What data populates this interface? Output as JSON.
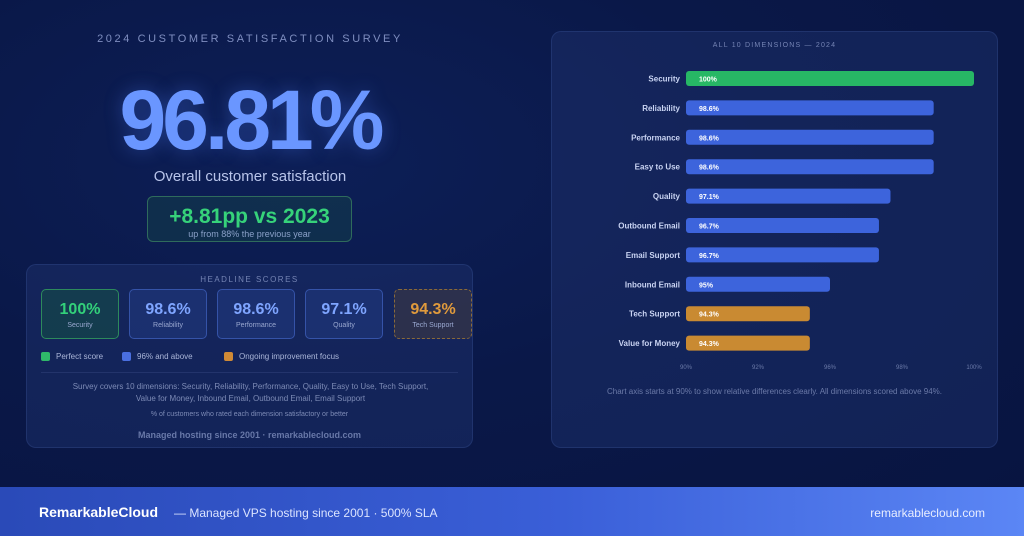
{
  "survey_title": "2024 CUSTOMER SATISFACTION SURVEY",
  "overall": {
    "value": "96.81%",
    "caption": "Overall customer satisfaction",
    "delta": "+8.81pp vs 2023",
    "delta_sub": "up from 88% the previous year"
  },
  "headline": {
    "heading": "HEADLINE SCORES",
    "cards": [
      {
        "value": "100%",
        "label": "Security",
        "style": "green"
      },
      {
        "value": "98.6%",
        "label": "Reliability",
        "style": "blue"
      },
      {
        "value": "98.6%",
        "label": "Performance",
        "style": "blue"
      },
      {
        "value": "97.1%",
        "label": "Quality",
        "style": "blue"
      },
      {
        "value": "94.3%",
        "label": "Tech Support",
        "style": "orange"
      }
    ],
    "legend": [
      {
        "label": "Perfect score",
        "color": "#2fb86a"
      },
      {
        "label": "96% and above",
        "color": "#4a6fe0"
      },
      {
        "label": "Ongoing improvement focus",
        "color": "#d08a36"
      }
    ],
    "note": "Survey covers 10 dimensions: Security, Reliability, Performance, Quality, Easy to Use, Tech Support, Value for Money, Inbound Email, Outbound Email, Email Support",
    "note2": "% of customers who rated each dimension satisfactory or better",
    "brand": "Managed hosting since 2001 · remarkablecloud.com"
  },
  "chart_data": {
    "type": "bar",
    "orientation": "horizontal",
    "title": "ALL 10 DIMENSIONS — 2024",
    "categories": [
      "Security",
      "Reliability",
      "Performance",
      "Easy to Use",
      "Quality",
      "Outbound Email",
      "Email Support",
      "Inbound Email",
      "Tech Support",
      "Value for Money"
    ],
    "values": [
      100,
      98.6,
      98.6,
      98.6,
      97.1,
      96.7,
      96.7,
      95,
      94.3,
      94.3
    ],
    "value_labels": [
      "100%",
      "98.6%",
      "98.6%",
      "98.6%",
      "97.1%",
      "96.7%",
      "96.7%",
      "95%",
      "94.3%",
      "94.3%"
    ],
    "colors": [
      "#27b765",
      "#3d64dc",
      "#3d64dc",
      "#3d64dc",
      "#3d64dc",
      "#3d64dc",
      "#3d64dc",
      "#3d64dc",
      "#c98a32",
      "#c98a32"
    ],
    "xlim": [
      90,
      100
    ],
    "xticks": [
      "90%",
      "92%",
      "96%",
      "98%",
      "100%"
    ],
    "footnote": "Chart axis starts at 90% to show relative differences clearly. All dimensions scored above 94%."
  },
  "footer": {
    "brand": "RemarkableCloud",
    "tagline": "— Managed VPS hosting since 2001 · 500% SLA",
    "url": "remarkablecloud.com"
  }
}
